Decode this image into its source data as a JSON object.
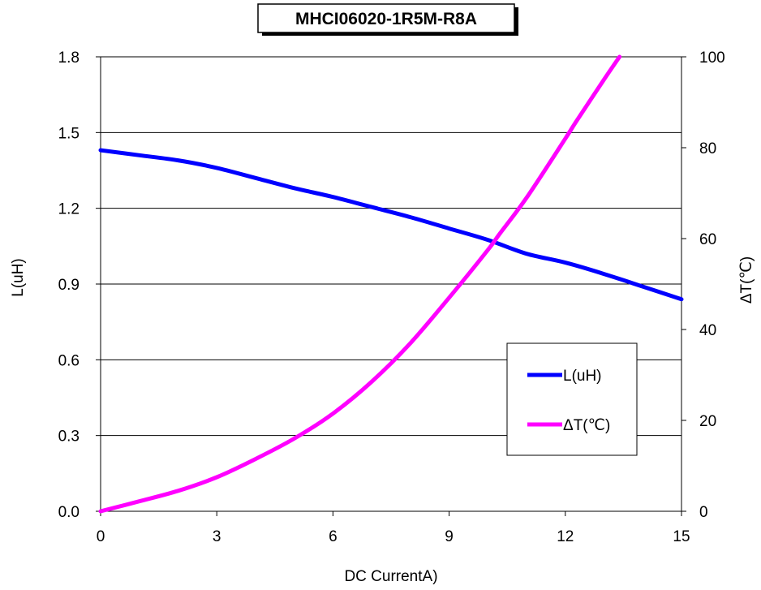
{
  "chart_data": {
    "type": "line",
    "title": "MHCI06020-1R5M-R8A",
    "xlabel": "DC CurrentA)",
    "ylabel": "L(uH)",
    "y2label": "ΔT(℃)",
    "xlim": [
      0,
      15
    ],
    "ylim": [
      0,
      1.8
    ],
    "y2lim": [
      0,
      100
    ],
    "x_ticks": [
      "0",
      "3",
      "6",
      "9",
      "12",
      "15"
    ],
    "y_ticks": [
      "0.0",
      "0.3",
      "0.6",
      "0.9",
      "1.2",
      "1.5",
      "1.8"
    ],
    "y2_ticks": [
      "0",
      "20",
      "40",
      "60",
      "80",
      "100"
    ],
    "grid": "horizontal",
    "legend_position": "center-right",
    "series": [
      {
        "name": "L(uH)",
        "axis": "left",
        "color": "#0000ff",
        "x": [
          0,
          1,
          2,
          3,
          4,
          5,
          6,
          7,
          8,
          9,
          10,
          11,
          12,
          13,
          14,
          15
        ],
        "values": [
          1.43,
          1.41,
          1.39,
          1.36,
          1.32,
          1.28,
          1.245,
          1.205,
          1.165,
          1.12,
          1.075,
          1.02,
          0.985,
          0.94,
          0.89,
          0.84
        ]
      },
      {
        "name": "ΔT(℃)",
        "axis": "right",
        "color": "#ff00ff",
        "x": [
          0,
          1,
          2,
          3,
          4,
          5,
          6,
          7,
          8,
          9,
          10,
          10.3,
          11,
          12,
          12.3,
          13,
          13.4
        ],
        "values": [
          0,
          2.2,
          4.5,
          7.5,
          11.5,
          16,
          21.5,
          28.5,
          37,
          47,
          57.5,
          61,
          69,
          82,
          86,
          95,
          100
        ]
      }
    ]
  }
}
